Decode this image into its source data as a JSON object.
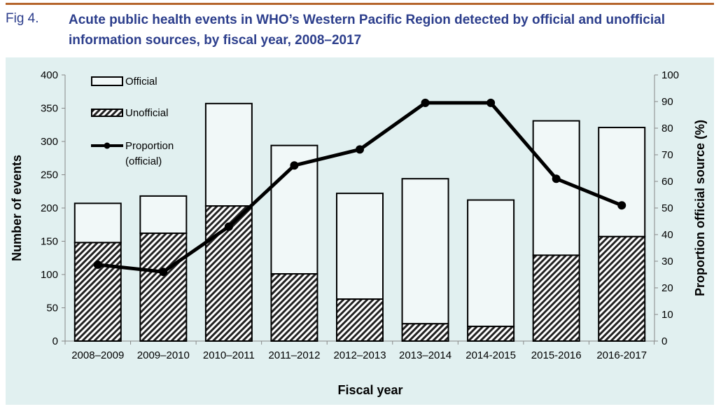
{
  "figure_label": "Fig 4.",
  "title": "Acute public health events in WHO’s Western Pacific Region detected by official and unofficial information sources, by fiscal year, 2008–2017",
  "chart_data": {
    "type": "bar",
    "stacked": true,
    "categories": [
      "2008–2009",
      "2009–2010",
      "2010–2011",
      "2011–2012",
      "2012–2013",
      "2013–2014",
      "2014-2015",
      "2015-2016",
      "2016-2017"
    ],
    "series": [
      {
        "name": "Unofficial",
        "values": [
          148,
          162,
          203,
          101,
          63,
          26,
          22,
          129,
          157
        ],
        "fill": "hatched"
      },
      {
        "name": "Official",
        "values": [
          59,
          56,
          154,
          193,
          159,
          218,
          190,
          202,
          164
        ],
        "color": "#f1f8f8"
      },
      {
        "name": "Proportion (official)",
        "type": "line",
        "axis": "right",
        "values": [
          28.7,
          26,
          43,
          66,
          72,
          89.5,
          89.5,
          61,
          51
        ],
        "color": "#000000"
      }
    ],
    "xlabel": "Fiscal year",
    "ylabel": "Number of events",
    "y2label": "Proportion official source (%)",
    "ylim": [
      0,
      400
    ],
    "yticks": [
      0,
      50,
      100,
      150,
      200,
      250,
      300,
      350,
      400
    ],
    "y2lim": [
      0,
      100
    ],
    "y2ticks": [
      0,
      10,
      20,
      30,
      40,
      50,
      60,
      70,
      80,
      90,
      100
    ],
    "legend": {
      "placement": "top-left",
      "entries": [
        "Official",
        "Unofficial",
        "Proportion",
        "(official)"
      ]
    },
    "background": "#e1f0f0"
  }
}
